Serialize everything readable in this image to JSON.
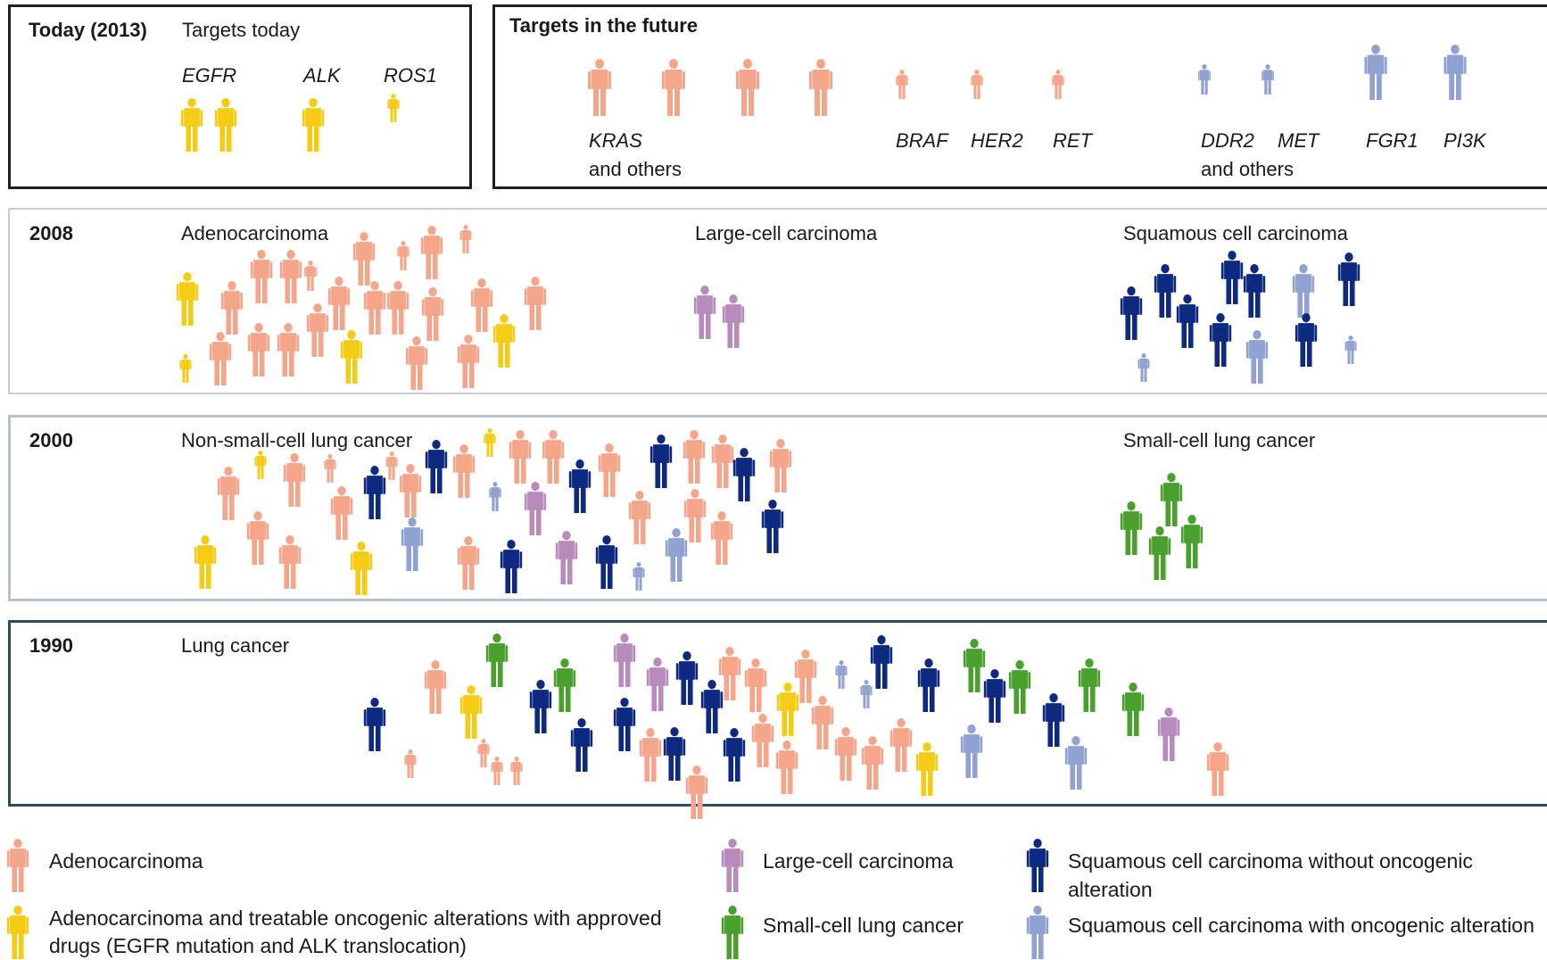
{
  "colors": {
    "adenocarcinoma": "#f4a58a",
    "adeno_treatable": "#f5cc15",
    "large_cell": "#b98bbd",
    "small_cell": "#4aa02c",
    "squamous_no_alt": "#0d2a80",
    "squamous_alt": "#8fa2d2"
  },
  "icon_name": "person-icon",
  "panels": {
    "today": {
      "year": "Today (2013)",
      "title": "Targets today",
      "targets": [
        {
          "label": "EGFR",
          "count": 2
        },
        {
          "label": "ALK",
          "count": 1
        },
        {
          "label": "ROS1",
          "count": 1
        }
      ]
    },
    "future": {
      "title": "Targets in the future",
      "targets": [
        {
          "label": "KRAS",
          "sublabel": "and others",
          "count": 4
        },
        {
          "label": "BRAF"
        },
        {
          "label": "HER2"
        },
        {
          "label": "RET"
        },
        {
          "label": "DDR2",
          "sublabel": "and others"
        },
        {
          "label": "MET"
        },
        {
          "label": "FGR1"
        },
        {
          "label": "PI3K"
        }
      ]
    },
    "y2008": {
      "year": "2008",
      "groups": [
        "Adenocarcinoma",
        "Large-cell carcinoma",
        "Squamous cell carcinoma"
      ]
    },
    "y2000": {
      "year": "2000",
      "groups": [
        "Non-small-cell lung cancer",
        "Small-cell lung cancer"
      ]
    },
    "y1990": {
      "year": "1990",
      "groups": [
        "Lung cancer"
      ]
    }
  },
  "legend": {
    "adenocarcinoma": "Adenocarcinoma",
    "adeno_treatable_line1": "Adenocarcinoma and treatable oncogenic alterations with approved",
    "adeno_treatable_line2": "drugs (EGFR mutation and ALK translocation)",
    "large_cell": "Large-cell carcinoma",
    "small_cell": "Small-cell lung cancer",
    "squamous_no_alt": "Squamous cell carcinoma without oncogenic alteration",
    "squamous_alt": "Squamous cell carcinoma with oncogenic alteration"
  }
}
